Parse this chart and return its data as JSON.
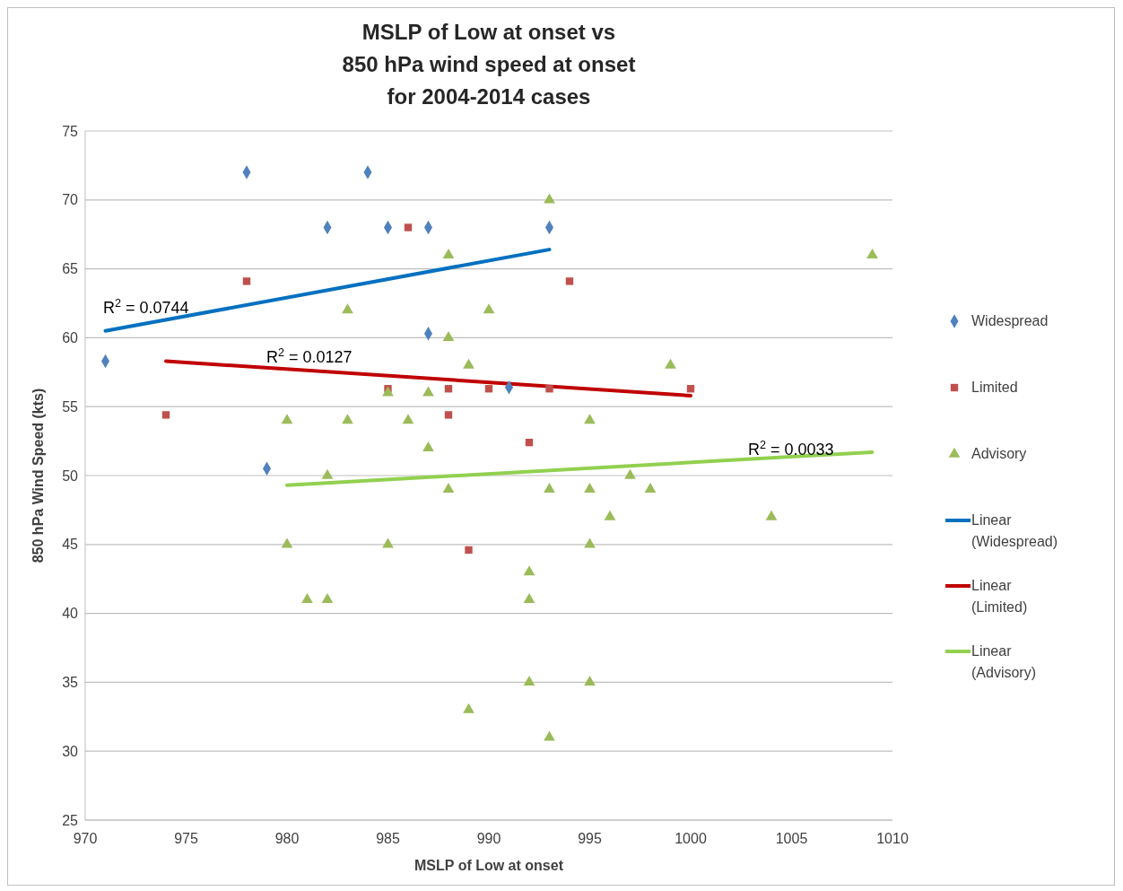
{
  "chart_data": {
    "type": "scatter",
    "title": "MSLP of Low at onset vs\n850 hPa wind speed at onset\nfor 2004-2014 cases",
    "xlabel": "MSLP of Low at onset",
    "ylabel": "850 hPa Wind Speed (kts)",
    "xlim": [
      970,
      1010
    ],
    "xticks": [
      970,
      975,
      980,
      985,
      990,
      995,
      1000,
      1005,
      1010
    ],
    "ylim": [
      25,
      75
    ],
    "yticks": [
      25,
      30,
      35,
      40,
      45,
      50,
      55,
      60,
      65,
      70,
      75
    ],
    "grid": "y",
    "legend": "right",
    "series": [
      {
        "name": "Widespread",
        "marker": "diamond",
        "color": "#4f81bd",
        "x": [
          971,
          978,
          979,
          982,
          984,
          985,
          987,
          987,
          991,
          993
        ],
        "values": [
          58.3,
          72,
          50.5,
          68,
          72,
          68,
          68,
          60.3,
          56.4,
          68
        ]
      },
      {
        "name": "Limited",
        "marker": "square",
        "color": "#c0504d",
        "x": [
          974,
          978,
          985,
          986,
          988,
          988,
          989,
          990,
          992,
          993,
          994,
          1000
        ],
        "values": [
          54.4,
          64.1,
          56.3,
          68,
          56.3,
          54.4,
          44.6,
          56.3,
          52.4,
          56.3,
          64.1,
          56.3
        ]
      },
      {
        "name": "Advisory",
        "marker": "triangle",
        "color": "#9bbb59",
        "x": [
          980,
          980,
          981,
          982,
          982,
          983,
          983,
          985,
          985,
          986,
          987,
          987,
          988,
          988,
          988,
          989,
          989,
          990,
          992,
          992,
          992,
          993,
          993,
          993,
          995,
          995,
          995,
          995,
          996,
          997,
          998,
          999,
          1004,
          1009
        ],
        "values": [
          54,
          45,
          41,
          50,
          41,
          62,
          54,
          56,
          45,
          54,
          56,
          52,
          66,
          60,
          49,
          58,
          33,
          62,
          43,
          41,
          35,
          70,
          49,
          31,
          54,
          49,
          45,
          35,
          47,
          50,
          49,
          58,
          47,
          66
        ]
      },
      {
        "name": "Linear\n(Widespread)",
        "type": "line",
        "marker": "none",
        "color": "#0070c0",
        "x": [
          971,
          993
        ],
        "values": [
          60.5,
          66.4
        ]
      },
      {
        "name": "Linear\n(Limited)",
        "type": "line",
        "marker": "none",
        "color": "#c00000",
        "x": [
          974,
          1000
        ],
        "values": [
          58.3,
          55.8
        ]
      },
      {
        "name": "Linear\n(Advisory)",
        "type": "line",
        "marker": "none",
        "color": "#92d050",
        "x": [
          980,
          1009
        ],
        "values": [
          49.3,
          51.7
        ]
      }
    ],
    "annotations": [
      "R$^{2}$ = 0.0744",
      "R$^{2}$ = 0.0127",
      "R$^{2}$ = 0.0033"
    ]
  }
}
